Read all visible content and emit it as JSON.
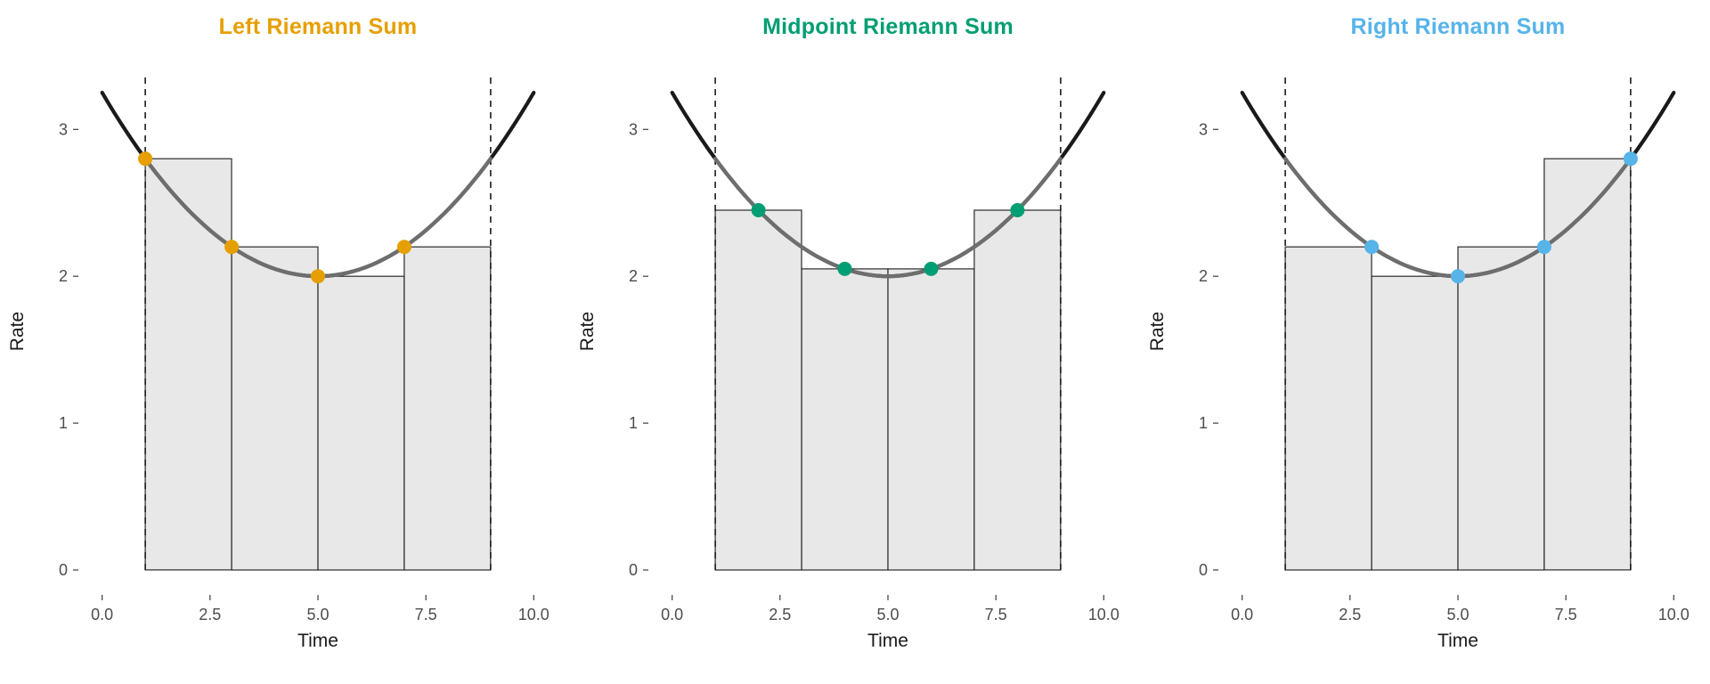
{
  "chart_data": {
    "type": "bar",
    "xlabel": "Time",
    "ylabel": "Rate",
    "xlim": [
      -0.55,
      10.55
    ],
    "ylim": [
      -0.17,
      3.42
    ],
    "grid": "off",
    "legend": "none",
    "x_ticks": {
      "values": [
        0,
        2.5,
        5,
        7.5,
        10
      ],
      "labels": [
        "0.0",
        "2.5",
        "5.0",
        "7.5",
        "10.0"
      ]
    },
    "y_ticks": {
      "values": [
        0,
        1,
        2,
        3
      ],
      "labels": [
        "0",
        "1",
        "2",
        "3"
      ]
    },
    "curve": {
      "kind": "quadratic",
      "equation": "rate = 2 + 0.05*(time-5)^2",
      "a": 0.05,
      "vertex": [
        5,
        2
      ],
      "x_range": [
        0,
        10
      ],
      "inner_range": [
        1,
        9
      ],
      "outer_color": "#1a1a1a",
      "inner_color": "#6e6e6e"
    },
    "integration_interval": [
      1,
      9
    ],
    "dashed_boundary_x": [
      1,
      9
    ],
    "n_subintervals": 4,
    "subinterval_width": 2,
    "bar_style": {
      "fill": "#e8e8e8",
      "stroke": "#2b2b2b"
    },
    "text_colors": {
      "tick": "#4d4d4d",
      "axis_title": "#1a1a1a"
    },
    "panels": [
      {
        "title": "Left Riemann Sum",
        "color": "#E69F00",
        "bars": [
          {
            "x0": 1,
            "x1": 3,
            "h": 2.8
          },
          {
            "x0": 3,
            "x1": 5,
            "h": 2.2
          },
          {
            "x0": 5,
            "x1": 7,
            "h": 2.0
          },
          {
            "x0": 7,
            "x1": 9,
            "h": 2.2
          }
        ],
        "points": [
          [
            1,
            2.8
          ],
          [
            3,
            2.2
          ],
          [
            5,
            2.0
          ],
          [
            7,
            2.2
          ]
        ]
      },
      {
        "title": "Midpoint Riemann Sum",
        "color": "#009E73",
        "bars": [
          {
            "x0": 1,
            "x1": 3,
            "h": 2.45
          },
          {
            "x0": 3,
            "x1": 5,
            "h": 2.05
          },
          {
            "x0": 5,
            "x1": 7,
            "h": 2.05
          },
          {
            "x0": 7,
            "x1": 9,
            "h": 2.45
          }
        ],
        "points": [
          [
            2,
            2.45
          ],
          [
            4,
            2.05
          ],
          [
            6,
            2.05
          ],
          [
            8,
            2.45
          ]
        ]
      },
      {
        "title": "Right Riemann Sum",
        "color": "#56B4E9",
        "bars": [
          {
            "x0": 1,
            "x1": 3,
            "h": 2.2
          },
          {
            "x0": 3,
            "x1": 5,
            "h": 2.0
          },
          {
            "x0": 5,
            "x1": 7,
            "h": 2.2
          },
          {
            "x0": 7,
            "x1": 9,
            "h": 2.8
          }
        ],
        "points": [
          [
            3,
            2.2
          ],
          [
            5,
            2.0
          ],
          [
            7,
            2.2
          ],
          [
            9,
            2.8
          ]
        ]
      }
    ]
  }
}
